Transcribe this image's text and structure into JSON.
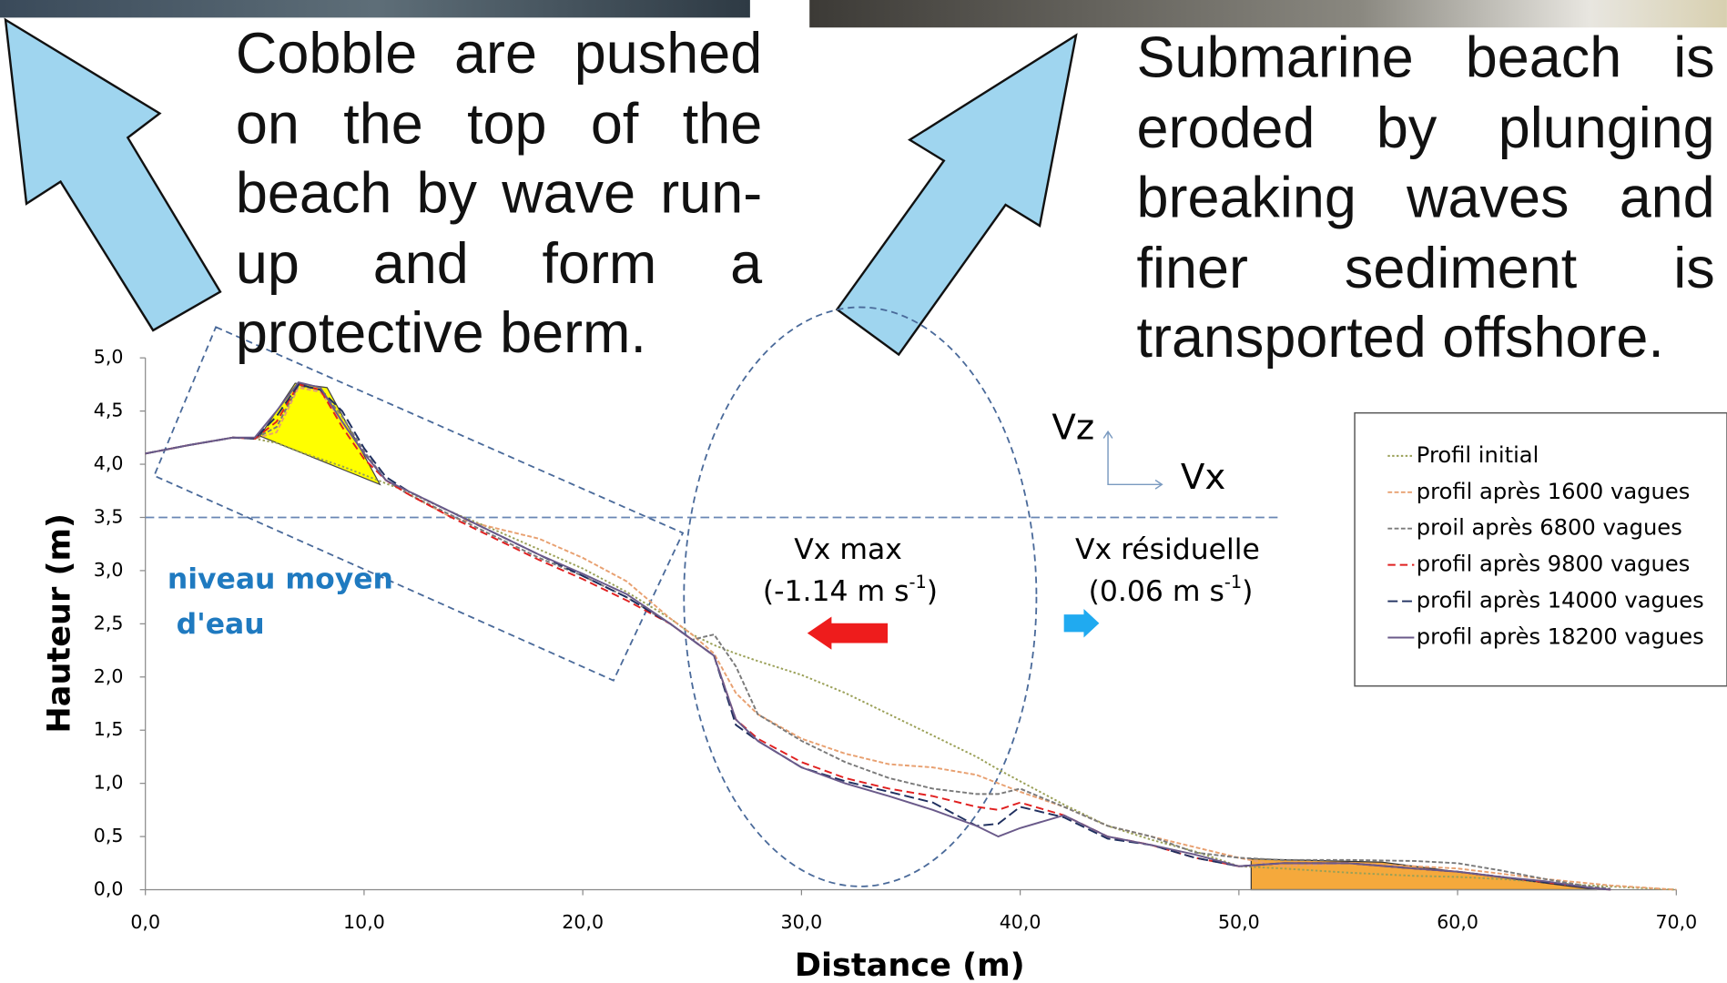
{
  "chart_data": {
    "type": "line",
    "annotations": [
      "Cobble are pushed on the top of the beach by wave run-up and form a protective berm.",
      "Submarine beach is eroded by plunging breaking waves and finer sediment is transported offshore."
    ],
    "xlabel": "Distance (m)",
    "ylabel": "Hauteur (m)",
    "water_level": 3.5,
    "water_label": [
      "niveau moyen",
      "d'eau"
    ],
    "velocity_axes": [
      "Vz",
      "Vx"
    ],
    "vx_max": {
      "label": "Vx max",
      "value": "(-1.14 m s",
      "exponent": "-1",
      "close": ")"
    },
    "vx_residual": {
      "label": "Vx résiduelle",
      "value": "(0.06 m s",
      "exponent": "-1",
      "close": ")"
    },
    "xlim": [
      0,
      70
    ],
    "ylim": [
      0,
      5
    ],
    "xticks": [
      {
        "value": 0,
        "label": "0,0"
      },
      {
        "value": 10,
        "label": "10,0"
      },
      {
        "value": 20,
        "label": "20,0"
      },
      {
        "value": 30,
        "label": "30,0"
      },
      {
        "value": 40,
        "label": "40,0"
      },
      {
        "value": 50,
        "label": "50,0"
      },
      {
        "value": 60,
        "label": "60,0"
      },
      {
        "value": 70,
        "label": "70,0"
      }
    ],
    "yticks": [
      {
        "value": 0,
        "label": "0,0"
      },
      {
        "value": 0.5,
        "label": "0,5"
      },
      {
        "value": 1,
        "label": "1,0"
      },
      {
        "value": 1.5,
        "label": "1,5"
      },
      {
        "value": 2,
        "label": "2,0"
      },
      {
        "value": 2.5,
        "label": "2,5"
      },
      {
        "value": 3,
        "label": "3,0"
      },
      {
        "value": 3.5,
        "label": "3,5"
      },
      {
        "value": 4,
        "label": "4,0"
      },
      {
        "value": 4.5,
        "label": "4,5"
      },
      {
        "value": 5,
        "label": "5,0"
      }
    ],
    "x": [
      0,
      2,
      4,
      5,
      6,
      7,
      8,
      9,
      10,
      11,
      12,
      14,
      16,
      18,
      20,
      22,
      24,
      25,
      26,
      27,
      28,
      30,
      32,
      34,
      36,
      38,
      39,
      40,
      42,
      44,
      46,
      48,
      50,
      52,
      55,
      58,
      60,
      62,
      64,
      66,
      67,
      70
    ],
    "series": [
      {
        "name": "Profil initial",
        "color": "#9aa057",
        "dash": "2,2",
        "values": [
          4.1,
          4.18,
          4.25,
          4.24,
          4.2,
          4.12,
          4.05,
          3.98,
          3.9,
          3.82,
          3.74,
          3.55,
          3.38,
          3.2,
          3.02,
          2.8,
          2.55,
          2.4,
          2.3,
          2.22,
          2.15,
          2.02,
          1.85,
          1.65,
          1.45,
          1.25,
          1.13,
          1.02,
          0.8,
          0.6,
          0.47,
          0.36,
          0.22,
          0.2,
          0.16,
          0.13,
          0.12,
          0.1,
          0.07,
          0.04,
          0.03,
          0
        ]
      },
      {
        "name": "profil après 1600 vagues",
        "color": "#e8a070",
        "dash": "4,2",
        "values": [
          4.1,
          4.18,
          4.25,
          4.24,
          4.3,
          4.72,
          4.68,
          4.4,
          4.1,
          3.85,
          3.72,
          3.5,
          3.4,
          3.3,
          3.12,
          2.9,
          2.55,
          2.4,
          2.22,
          1.85,
          1.65,
          1.42,
          1.28,
          1.18,
          1.15,
          1.08,
          1.0,
          0.92,
          0.78,
          0.6,
          0.5,
          0.4,
          0.3,
          0.22,
          0.25,
          0.22,
          0.2,
          0.15,
          0.1,
          0.06,
          0.04,
          0
        ]
      },
      {
        "name": "proil après 6800 vagues",
        "color": "#7a7a7a",
        "dash": "4,2",
        "values": [
          4.1,
          4.18,
          4.25,
          4.24,
          4.35,
          4.74,
          4.7,
          4.45,
          4.12,
          3.85,
          3.72,
          3.52,
          3.32,
          3.12,
          2.95,
          2.75,
          2.5,
          2.35,
          2.4,
          2.1,
          1.65,
          1.4,
          1.2,
          1.05,
          0.95,
          0.9,
          0.9,
          0.95,
          0.78,
          0.6,
          0.5,
          0.35,
          0.3,
          0.28,
          0.28,
          0.27,
          0.25,
          0.18,
          0.1,
          0.03,
          0.01,
          null
        ]
      },
      {
        "name": "profil après 9800 vagues",
        "color": "#e02020",
        "dash": "7,4",
        "values": [
          4.1,
          4.18,
          4.25,
          4.24,
          4.4,
          4.75,
          4.7,
          4.35,
          4.05,
          3.85,
          3.72,
          3.5,
          3.3,
          3.1,
          2.92,
          2.72,
          2.5,
          2.35,
          2.2,
          1.6,
          1.42,
          1.2,
          1.05,
          0.95,
          0.88,
          0.78,
          0.75,
          0.82,
          0.7,
          0.5,
          0.42,
          0.3,
          0.22,
          0.25,
          0.25,
          0.2,
          0.17,
          0.12,
          0.07,
          0.02,
          0,
          null
        ]
      },
      {
        "name": "profil après 14000 vagues",
        "color": "#1f2f5f",
        "dash": "9,4",
        "values": [
          4.1,
          4.18,
          4.25,
          4.24,
          4.45,
          4.75,
          4.7,
          4.5,
          4.15,
          3.88,
          3.75,
          3.55,
          3.35,
          3.15,
          2.95,
          2.75,
          2.5,
          2.35,
          2.2,
          1.55,
          1.4,
          1.15,
          1.02,
          0.92,
          0.82,
          0.6,
          0.62,
          0.78,
          0.68,
          0.48,
          0.42,
          0.3,
          0.22,
          0.25,
          0.25,
          0.2,
          0.17,
          0.12,
          0.07,
          0.02,
          0,
          null
        ]
      },
      {
        "name": "profil après 18200 vagues",
        "color": "#6a5a8a",
        "dash": "none",
        "values": [
          4.1,
          4.18,
          4.25,
          4.25,
          4.5,
          4.77,
          4.72,
          4.4,
          4.1,
          3.85,
          3.75,
          3.55,
          3.35,
          3.15,
          2.97,
          2.78,
          2.5,
          2.35,
          2.2,
          1.6,
          1.4,
          1.15,
          1.0,
          0.88,
          0.75,
          0.6,
          0.5,
          0.58,
          0.7,
          0.5,
          0.42,
          0.33,
          0.22,
          0.25,
          0.25,
          0.2,
          0.17,
          0.12,
          0.08,
          0.02,
          0,
          null
        ]
      }
    ]
  }
}
